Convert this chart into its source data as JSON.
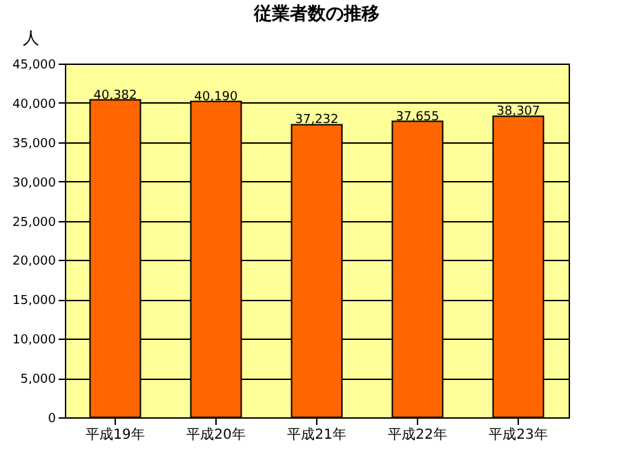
{
  "chart_data": {
    "type": "bar",
    "title": "従業者数の推移",
    "ylabel": "人",
    "categories": [
      "平成19年",
      "平成20年",
      "平成21年",
      "平成22年",
      "平成23年"
    ],
    "values": [
      40382,
      40190,
      37232,
      37655,
      38307
    ],
    "value_labels": [
      "40,382",
      "40,190",
      "37,232",
      "37,655",
      "38,307"
    ],
    "color": "#ff6600",
    "ylim": [
      0,
      45000
    ],
    "yticks": [
      {
        "value": 0,
        "label": "0"
      },
      {
        "value": 5000,
        "label": "5,000"
      },
      {
        "value": 10000,
        "label": "10,000"
      },
      {
        "value": 15000,
        "label": "15,000"
      },
      {
        "value": 20000,
        "label": "20,000"
      },
      {
        "value": 25000,
        "label": "25,000"
      },
      {
        "value": 30000,
        "label": "30,000"
      },
      {
        "value": 35000,
        "label": "35,000"
      },
      {
        "value": 40000,
        "label": "40,000"
      },
      {
        "value": 45000,
        "label": "45,000"
      }
    ],
    "grid": "y"
  }
}
